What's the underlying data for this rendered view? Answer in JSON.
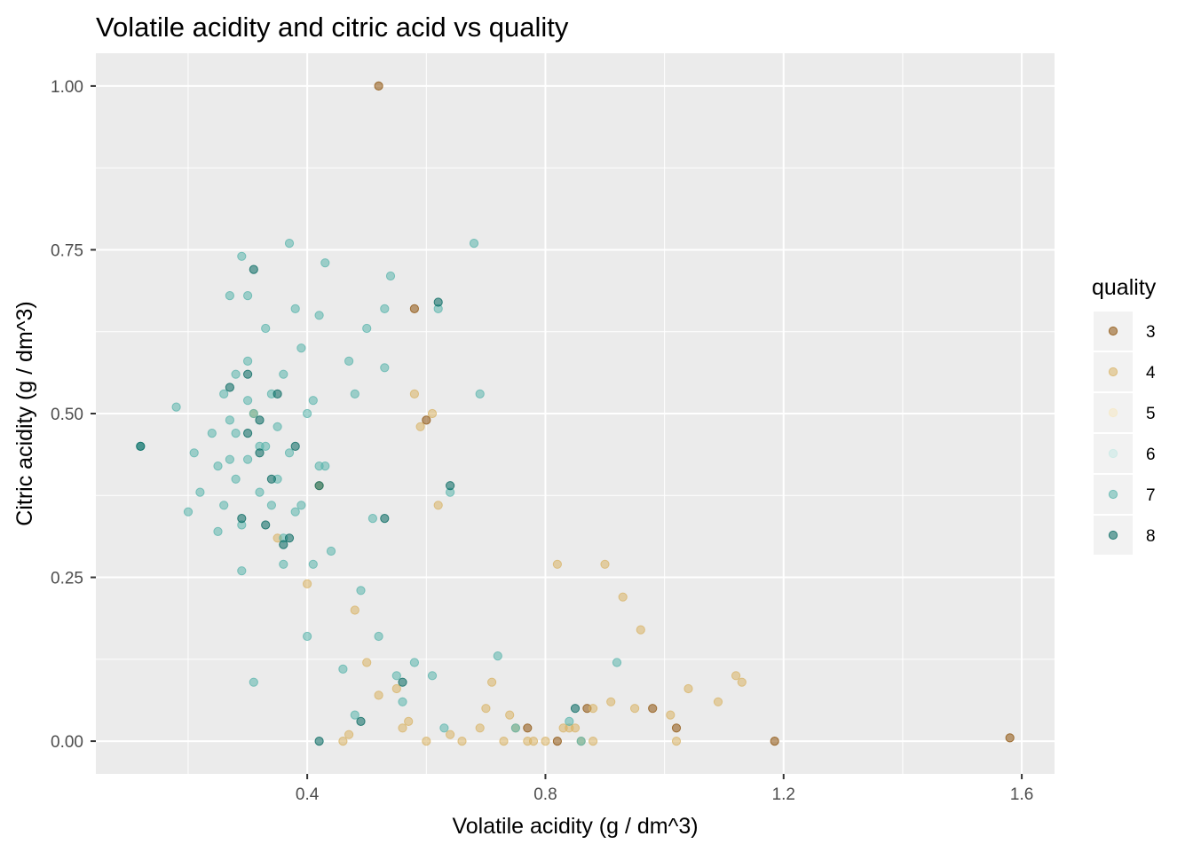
{
  "chart_data": {
    "type": "scatter",
    "title": "Volatile acidity and citric acid vs quality",
    "xlabel": "Volatile acidity (g / dm^3)",
    "ylabel": "Citric acidity (g / dm^3)",
    "xlim": [
      0.045,
      1.655
    ],
    "ylim": [
      -0.05,
      1.05
    ],
    "x_ticks": [
      0.4,
      0.8,
      1.2,
      1.6
    ],
    "x_tick_labels": [
      "0.4",
      "0.8",
      "1.2",
      "1.6"
    ],
    "y_ticks": [
      0.0,
      0.25,
      0.5,
      0.75,
      1.0
    ],
    "y_tick_labels": [
      "0.00",
      "0.25",
      "0.50",
      "0.75",
      "1.00"
    ],
    "grid": true,
    "background": "#ebebeb",
    "legend": {
      "title": "quality",
      "position": "right"
    },
    "series": [
      {
        "name": "3",
        "color": "#8c510a",
        "points": [
          [
            0.52,
            1.0
          ],
          [
            0.58,
            0.66
          ],
          [
            0.6,
            0.49
          ],
          [
            0.87,
            0.05
          ],
          [
            0.98,
            0.05
          ],
          [
            1.02,
            0.02
          ],
          [
            1.185,
            0.0
          ],
          [
            1.58,
            0.005
          ],
          [
            0.77,
            0.02
          ],
          [
            0.82,
            0.0
          ]
        ]
      },
      {
        "name": "4",
        "color": "#d8b365",
        "points": [
          [
            0.58,
            0.53
          ],
          [
            0.59,
            0.48
          ],
          [
            0.61,
            0.5
          ],
          [
            0.62,
            0.36
          ],
          [
            0.42,
            0.39
          ],
          [
            0.4,
            0.24
          ],
          [
            0.48,
            0.2
          ],
          [
            0.5,
            0.12
          ],
          [
            0.55,
            0.08
          ],
          [
            0.57,
            0.03
          ],
          [
            0.6,
            0.0
          ],
          [
            0.66,
            0.0
          ],
          [
            0.7,
            0.05
          ],
          [
            0.75,
            0.02
          ],
          [
            0.77,
            0.0
          ],
          [
            0.8,
            0.0
          ],
          [
            0.82,
            0.27
          ],
          [
            0.84,
            0.02
          ],
          [
            0.85,
            0.02
          ],
          [
            0.86,
            0.0
          ],
          [
            0.88,
            0.05
          ],
          [
            0.9,
            0.27
          ],
          [
            0.91,
            0.06
          ],
          [
            0.93,
            0.22
          ],
          [
            0.95,
            0.05
          ],
          [
            0.96,
            0.17
          ],
          [
            1.01,
            0.04
          ],
          [
            1.02,
            0.0
          ],
          [
            1.04,
            0.08
          ],
          [
            1.09,
            0.06
          ],
          [
            1.12,
            0.1
          ],
          [
            1.13,
            0.09
          ],
          [
            0.73,
            0.0
          ],
          [
            0.78,
            0.0
          ],
          [
            0.74,
            0.04
          ],
          [
            0.64,
            0.01
          ],
          [
            0.69,
            0.02
          ],
          [
            0.47,
            0.01
          ],
          [
            0.52,
            0.07
          ],
          [
            0.56,
            0.02
          ],
          [
            0.35,
            0.31
          ],
          [
            0.31,
            0.5
          ],
          [
            0.88,
            0.0
          ],
          [
            0.83,
            0.02
          ],
          [
            0.71,
            0.09
          ],
          [
            0.46,
            0.0
          ]
        ]
      },
      {
        "name": "5",
        "color": "#f6e8c3",
        "points": []
      },
      {
        "name": "6",
        "color": "#c7eae5",
        "points": []
      },
      {
        "name": "7",
        "color": "#5ab4ac",
        "points": [
          [
            0.12,
            0.45
          ],
          [
            0.18,
            0.51
          ],
          [
            0.2,
            0.35
          ],
          [
            0.21,
            0.44
          ],
          [
            0.22,
            0.38
          ],
          [
            0.24,
            0.47
          ],
          [
            0.25,
            0.32
          ],
          [
            0.25,
            0.42
          ],
          [
            0.26,
            0.36
          ],
          [
            0.27,
            0.49
          ],
          [
            0.27,
            0.68
          ],
          [
            0.28,
            0.4
          ],
          [
            0.28,
            0.47
          ],
          [
            0.28,
            0.56
          ],
          [
            0.29,
            0.26
          ],
          [
            0.29,
            0.33
          ],
          [
            0.29,
            0.74
          ],
          [
            0.3,
            0.43
          ],
          [
            0.3,
            0.58
          ],
          [
            0.3,
            0.68
          ],
          [
            0.31,
            0.09
          ],
          [
            0.31,
            0.5
          ],
          [
            0.32,
            0.38
          ],
          [
            0.33,
            0.45
          ],
          [
            0.33,
            0.63
          ],
          [
            0.34,
            0.36
          ],
          [
            0.34,
            0.53
          ],
          [
            0.35,
            0.48
          ],
          [
            0.35,
            0.4
          ],
          [
            0.36,
            0.31
          ],
          [
            0.36,
            0.56
          ],
          [
            0.37,
            0.76
          ],
          [
            0.37,
            0.44
          ],
          [
            0.38,
            0.35
          ],
          [
            0.38,
            0.66
          ],
          [
            0.39,
            0.6
          ],
          [
            0.4,
            0.5
          ],
          [
            0.4,
            0.16
          ],
          [
            0.41,
            0.52
          ],
          [
            0.41,
            0.27
          ],
          [
            0.42,
            0.65
          ],
          [
            0.43,
            0.42
          ],
          [
            0.43,
            0.73
          ],
          [
            0.44,
            0.29
          ],
          [
            0.46,
            0.11
          ],
          [
            0.47,
            0.58
          ],
          [
            0.48,
            0.04
          ],
          [
            0.48,
            0.53
          ],
          [
            0.49,
            0.23
          ],
          [
            0.5,
            0.63
          ],
          [
            0.51,
            0.34
          ],
          [
            0.52,
            0.16
          ],
          [
            0.53,
            0.57
          ],
          [
            0.53,
            0.66
          ],
          [
            0.54,
            0.71
          ],
          [
            0.55,
            0.1
          ],
          [
            0.56,
            0.06
          ],
          [
            0.58,
            0.12
          ],
          [
            0.61,
            0.1
          ],
          [
            0.62,
            0.66
          ],
          [
            0.63,
            0.02
          ],
          [
            0.64,
            0.38
          ],
          [
            0.68,
            0.76
          ],
          [
            0.69,
            0.53
          ],
          [
            0.72,
            0.13
          ],
          [
            0.75,
            0.02
          ],
          [
            0.84,
            0.03
          ],
          [
            0.86,
            0.0
          ],
          [
            0.92,
            0.12
          ],
          [
            0.36,
            0.27
          ],
          [
            0.32,
            0.45
          ],
          [
            0.3,
            0.52
          ],
          [
            0.27,
            0.43
          ],
          [
            0.26,
            0.53
          ],
          [
            0.42,
            0.42
          ],
          [
            0.39,
            0.36
          ]
        ]
      },
      {
        "name": "8",
        "color": "#01665e",
        "points": [
          [
            0.12,
            0.45
          ],
          [
            0.27,
            0.54
          ],
          [
            0.3,
            0.56
          ],
          [
            0.31,
            0.72
          ],
          [
            0.32,
            0.44
          ],
          [
            0.33,
            0.33
          ],
          [
            0.34,
            0.4
          ],
          [
            0.35,
            0.53
          ],
          [
            0.36,
            0.3
          ],
          [
            0.37,
            0.31
          ],
          [
            0.38,
            0.45
          ],
          [
            0.42,
            0.39
          ],
          [
            0.42,
            0.0
          ],
          [
            0.49,
            0.03
          ],
          [
            0.53,
            0.34
          ],
          [
            0.56,
            0.09
          ],
          [
            0.62,
            0.67
          ],
          [
            0.64,
            0.39
          ],
          [
            0.85,
            0.05
          ],
          [
            0.3,
            0.47
          ],
          [
            0.32,
            0.49
          ],
          [
            0.29,
            0.34
          ]
        ]
      }
    ]
  }
}
